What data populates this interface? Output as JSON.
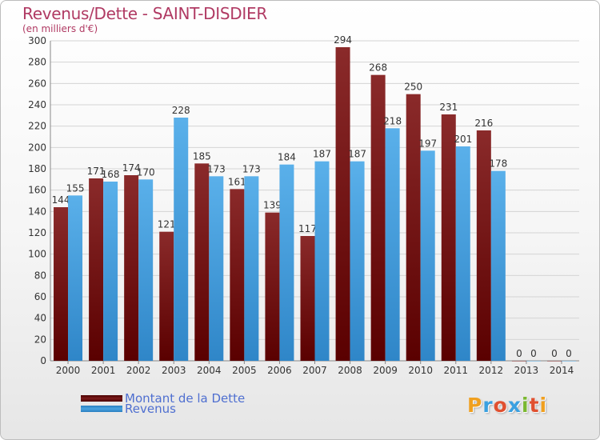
{
  "chart_data": {
    "type": "bar",
    "title": "Revenus/Dette - SAINT-DISDIER",
    "subtitle": "(en milliers d'€)",
    "categories": [
      "2000",
      "2001",
      "2002",
      "2003",
      "2004",
      "2005",
      "2006",
      "2007",
      "2008",
      "2009",
      "2010",
      "2011",
      "2012",
      "2013",
      "2014"
    ],
    "series": [
      {
        "name": "Montant de la Dette",
        "values": [
          144,
          171,
          174,
          121,
          185,
          161,
          139,
          117,
          294,
          268,
          250,
          231,
          216,
          0,
          0
        ],
        "color": "#7a1a1a"
      },
      {
        "name": "Revenus",
        "values": [
          155,
          168,
          170,
          228,
          173,
          173,
          184,
          187,
          187,
          218,
          197,
          201,
          178,
          0,
          0
        ],
        "color": "#4aa3e0"
      }
    ],
    "ylim": [
      0,
      300
    ],
    "yticks": [
      0,
      20,
      40,
      60,
      80,
      100,
      120,
      140,
      160,
      180,
      200,
      220,
      240,
      260,
      280,
      300
    ],
    "grid": true,
    "legend_position": "bottom-left"
  },
  "brand": {
    "logo_text": "Proxiti",
    "letter_colors": [
      "#f0a020",
      "#3aa0e0",
      "#e05030",
      "#3aa0e0",
      "#7ab830",
      "#e05030",
      "#f0a020"
    ]
  }
}
